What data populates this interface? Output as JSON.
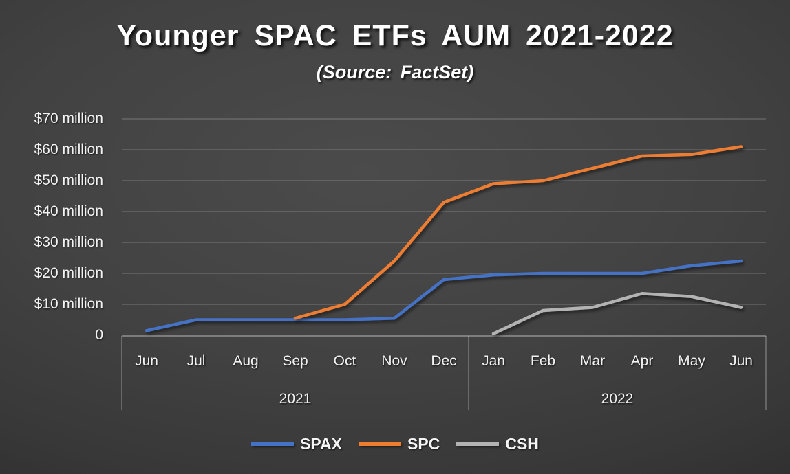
{
  "chart_data": {
    "type": "line",
    "title": "Younger SPAC ETFs AUM 2021-2022",
    "subtitle": "(Source: FactSet)",
    "y_unit": "$ million",
    "ylim": [
      0,
      70
    ],
    "grid": true,
    "legend_position": "bottom",
    "y_ticks": [
      {
        "value": 70,
        "label": "$70 million"
      },
      {
        "value": 60,
        "label": "$60 million"
      },
      {
        "value": 50,
        "label": "$50 million"
      },
      {
        "value": 40,
        "label": "$40 million"
      },
      {
        "value": 30,
        "label": "$30 million"
      },
      {
        "value": 20,
        "label": "$20 million"
      },
      {
        "value": 10,
        "label": "$10 million"
      },
      {
        "value": 0,
        "label": "0"
      }
    ],
    "categories": [
      "Jun",
      "Jul",
      "Aug",
      "Sep",
      "Oct",
      "Nov",
      "Dec",
      "Jan",
      "Feb",
      "Mar",
      "Apr",
      "May",
      "Jun"
    ],
    "year_groups": [
      {
        "label": "2021",
        "start": 0,
        "end": 6
      },
      {
        "label": "2022",
        "start": 7,
        "end": 12
      }
    ],
    "series": [
      {
        "name": "SPAX",
        "color": "#4472C4",
        "start_index": 0,
        "values": [
          1.5,
          5,
          5,
          5,
          5,
          5.5,
          18,
          19.5,
          20,
          20,
          20,
          22.5,
          24
        ]
      },
      {
        "name": "SPC",
        "color": "#ED7D31",
        "start_index": 3,
        "values": [
          5.5,
          10,
          24,
          43,
          49,
          50,
          54,
          58,
          58.5,
          61
        ]
      },
      {
        "name": "CSH",
        "color": "#B3B3B3",
        "start_index": 7,
        "values": [
          0.5,
          8,
          9,
          13.5,
          12.5,
          9
        ]
      }
    ]
  }
}
